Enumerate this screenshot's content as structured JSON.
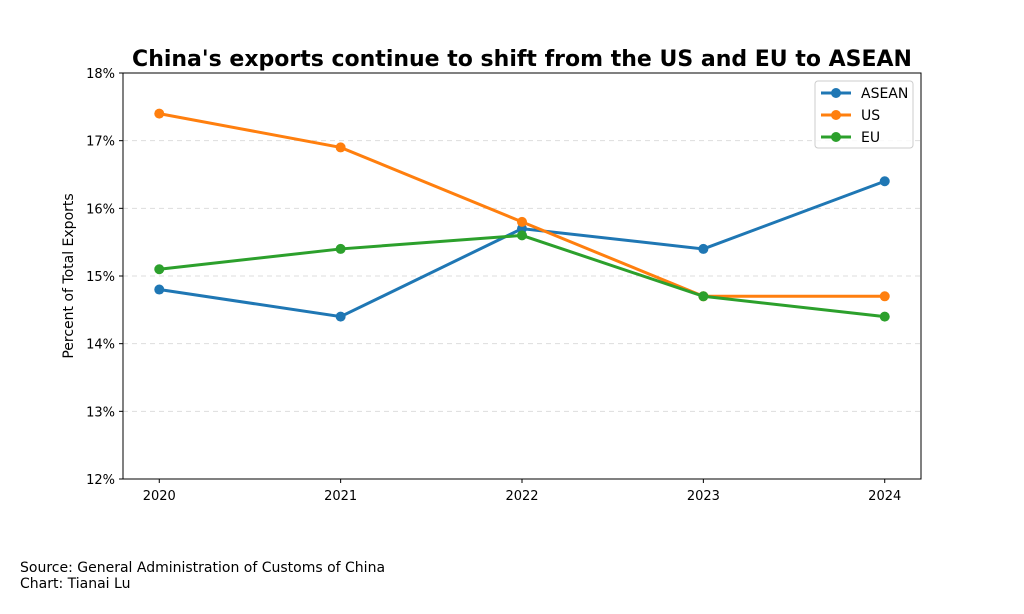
{
  "chart_data": {
    "type": "line",
    "title": "China's exports continue to shift from the US and EU to ASEAN",
    "xlabel": "",
    "ylabel": "Percent of Total Exports",
    "x": [
      2020,
      2021,
      2022,
      2023,
      2024
    ],
    "x_tick_labels": [
      "2020",
      "2021",
      "2022",
      "2023",
      "2024"
    ],
    "ylim": [
      12,
      18
    ],
    "xlim": [
      2019.8,
      2024.2
    ],
    "y_ticks": [
      12,
      13,
      14,
      15,
      16,
      17,
      18
    ],
    "y_tick_labels": [
      "12%",
      "13%",
      "14%",
      "15%",
      "16%",
      "17%",
      "18%"
    ],
    "grid": "horizontal dashed",
    "legend_placement": "top-right",
    "series": [
      {
        "name": "ASEAN",
        "color": "#1f77b4",
        "values": [
          14.8,
          14.4,
          15.7,
          15.4,
          16.4
        ]
      },
      {
        "name": "US",
        "color": "#ff7f0e",
        "values": [
          17.4,
          16.9,
          15.8,
          14.7,
          14.7
        ]
      },
      {
        "name": "EU",
        "color": "#2ca02c",
        "values": [
          15.1,
          15.4,
          15.6,
          14.7,
          14.4
        ]
      }
    ]
  },
  "footer": {
    "source": "Source: General Administration of Customs of China",
    "credit": "Chart: Tianai Lu"
  }
}
